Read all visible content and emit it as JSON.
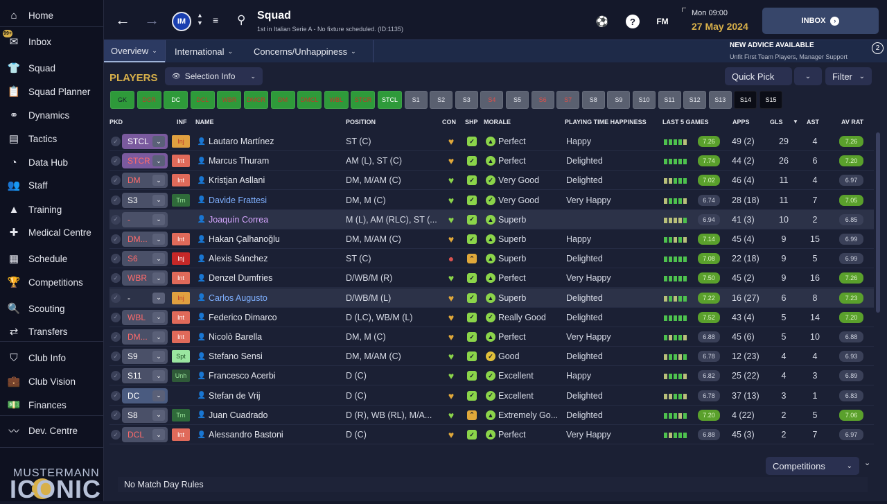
{
  "sidebar": {
    "inbox_badge": "99+",
    "items": [
      {
        "label": "Home",
        "icon": "home-icon",
        "glyph": "⌂"
      },
      {
        "label": "Inbox",
        "icon": "inbox-icon",
        "glyph": "✉"
      },
      {
        "label": "Squad",
        "icon": "squad-shirt-icon",
        "glyph": "👕",
        "active": true
      },
      {
        "label": "Squad Planner",
        "icon": "clipboard-icon",
        "glyph": "📋"
      },
      {
        "label": "Dynamics",
        "icon": "dynamics-icon",
        "glyph": "⚭"
      },
      {
        "label": "Tactics",
        "icon": "tactics-board-icon",
        "glyph": "▤"
      },
      {
        "label": "Data Hub",
        "icon": "data-hub-icon",
        "glyph": "◔"
      },
      {
        "label": "Staff",
        "icon": "staff-icon",
        "glyph": "👥"
      },
      {
        "label": "Training",
        "icon": "training-cone-icon",
        "glyph": "▲"
      },
      {
        "label": "Medical Centre",
        "icon": "medical-kit-icon",
        "glyph": "✚"
      },
      {
        "label": "Schedule",
        "icon": "calendar-icon",
        "glyph": "▦"
      },
      {
        "label": "Competitions",
        "icon": "trophy-icon",
        "glyph": "🏆"
      },
      {
        "label": "Scouting",
        "icon": "magnifier-icon",
        "glyph": "🔍"
      },
      {
        "label": "Transfers",
        "icon": "transfers-arrows-icon",
        "glyph": "⇄"
      },
      {
        "label": "Club Info",
        "icon": "shield-icon",
        "glyph": "⛉"
      },
      {
        "label": "Club Vision",
        "icon": "briefcase-icon",
        "glyph": "💼"
      },
      {
        "label": "Finances",
        "icon": "money-icon",
        "glyph": "💵"
      },
      {
        "label": "Dev. Centre",
        "icon": "dev-centre-icon",
        "glyph": "〰"
      }
    ],
    "brand_top": "MUSTERMANN",
    "brand_bottom": "ICONIC"
  },
  "topbar": {
    "title": "Squad",
    "subtitle": "1st in Italian Serie A - No fixture scheduled. (ID:1135)",
    "club_crest": "IM",
    "time": "Mon 09:00",
    "date": "27 May 2024",
    "fm_label": "FM",
    "inbox_label": "INBOX"
  },
  "tabs": [
    {
      "label": "Overview",
      "active": true
    },
    {
      "label": "International"
    },
    {
      "label": "Concerns/Unhappiness"
    }
  ],
  "advice": {
    "title": "NEW ADVICE AVAILABLE",
    "text": "Unfit First Team Players, Manager Support",
    "count": "2"
  },
  "toolbar": {
    "players_label": "PLAYERS",
    "selection_info": "Selection Info",
    "quick_pick": "Quick Pick",
    "filter": "Filter"
  },
  "formation_slots": [
    {
      "label": "GK",
      "state": "green"
    },
    {
      "label": "DCR",
      "state": "green-red"
    },
    {
      "label": "DC",
      "state": "green-white"
    },
    {
      "label": "DCL",
      "state": "green-red"
    },
    {
      "label": "WBR",
      "state": "green-red"
    },
    {
      "label": "DMCR",
      "state": "green-red"
    },
    {
      "label": "DM",
      "state": "green-red"
    },
    {
      "label": "DMCL",
      "state": "green-red"
    },
    {
      "label": "WBL",
      "state": "green-red"
    },
    {
      "label": "STCR",
      "state": "green-red"
    },
    {
      "label": "STCL",
      "state": "green-white"
    },
    {
      "label": "S1",
      "state": "grey"
    },
    {
      "label": "S2",
      "state": "grey"
    },
    {
      "label": "S3",
      "state": "grey"
    },
    {
      "label": "S4",
      "state": "grey-red"
    },
    {
      "label": "S5",
      "state": "grey"
    },
    {
      "label": "S6",
      "state": "grey-red"
    },
    {
      "label": "S7",
      "state": "grey-red"
    },
    {
      "label": "S8",
      "state": "grey"
    },
    {
      "label": "S9",
      "state": "grey"
    },
    {
      "label": "S10",
      "state": "grey"
    },
    {
      "label": "S11",
      "state": "grey"
    },
    {
      "label": "S12",
      "state": "grey"
    },
    {
      "label": "S13",
      "state": "grey"
    },
    {
      "label": "S14",
      "state": "black"
    },
    {
      "label": "S15",
      "state": "black"
    }
  ],
  "columns": {
    "pkd": "PKD",
    "inf": "INF",
    "name": "NAME",
    "position": "POSITION",
    "con": "CON",
    "shp": "SHP",
    "morale": "MORALE",
    "pth": "PLAYING TIME HAPPINESS",
    "last5": "LAST 5 GAMES",
    "apps": "APPS",
    "gls": "GLS",
    "ast": "AST",
    "avrat": "AV RAT"
  },
  "players": [
    {
      "pkd": "STCL",
      "pkd_color": "#ffffff",
      "pkd_bg": "#7a5a9e",
      "inf": "Inj",
      "inf_type": "inj-amber",
      "name": "Lautaro Martínez",
      "name_color": "#e6e8ef",
      "position": "ST (C)",
      "con": "amber",
      "shp": "green",
      "morale_icon": "up",
      "morale": "Perfect",
      "pth": "Happy",
      "last5": [
        1,
        1,
        1,
        1,
        0
      ],
      "last5_rating": "7.26",
      "last5_hi": true,
      "apps": "49 (2)",
      "gls": "29",
      "ast": "4",
      "avrat": "7.26",
      "avrat_hi": true
    },
    {
      "pkd": "STCR",
      "pkd_color": "#ff6b6b",
      "pkd_bg": "#7a5a9e",
      "inf": "Int",
      "inf_type": "int",
      "name": "Marcus Thuram",
      "name_color": "#e6e8ef",
      "position": "AM (L), ST (C)",
      "con": "amber",
      "shp": "green",
      "morale_icon": "up",
      "morale": "Perfect",
      "pth": "Delighted",
      "last5": [
        1,
        1,
        1,
        1,
        1
      ],
      "last5_rating": "7.74",
      "last5_hi": true,
      "apps": "44 (2)",
      "gls": "26",
      "ast": "6",
      "avrat": "7.20",
      "avrat_hi": true
    },
    {
      "pkd": "DM",
      "pkd_color": "#ff6b6b",
      "pkd_bg": "#4a5068",
      "inf": "Int",
      "inf_type": "int",
      "name": "Kristjan Asllani",
      "name_color": "#e6e8ef",
      "position": "DM, M/AM (C)",
      "con": "green",
      "shp": "green",
      "morale_icon": "check",
      "morale": "Very Good",
      "pth": "Delighted",
      "last5": [
        0,
        0,
        1,
        1,
        1
      ],
      "last5_rating": "7.02",
      "last5_hi": true,
      "apps": "46 (4)",
      "gls": "11",
      "ast": "4",
      "avrat": "6.97",
      "avrat_hi": false
    },
    {
      "pkd": "S3",
      "pkd_color": "#ffffff",
      "pkd_bg": "#4a5068",
      "inf": "Trn",
      "inf_type": "trn",
      "name": "Davide Frattesi",
      "name_color": "#7fb0ff",
      "position": "DM, M (C)",
      "con": "green",
      "shp": "green",
      "morale_icon": "check",
      "morale": "Very Good",
      "pth": "Very Happy",
      "last5": [
        0,
        1,
        1,
        1,
        0
      ],
      "last5_rating": "6.74",
      "last5_hi": false,
      "apps": "28 (18)",
      "gls": "11",
      "ast": "7",
      "avrat": "7.05",
      "avrat_hi": true
    },
    {
      "pkd": "-",
      "pkd_color": "#ff6b6b",
      "pkd_bg": "#4a5068",
      "inf": "",
      "inf_type": "none",
      "name": "Joaquín Correa",
      "name_color": "#d6a6ff",
      "position": "M (L), AM (RLC), ST (...",
      "con": "green",
      "shp": "green",
      "morale_icon": "up",
      "morale": "Superb",
      "pth": "",
      "last5": [
        0,
        0,
        0,
        0,
        1
      ],
      "last5_rating": "6.94",
      "last5_hi": false,
      "apps": "41 (3)",
      "gls": "10",
      "ast": "2",
      "avrat": "6.85",
      "avrat_hi": false,
      "highlight": true
    },
    {
      "pkd": "DM...",
      "pkd_color": "#ff6b6b",
      "pkd_bg": "#4a5068",
      "inf": "Int",
      "inf_type": "int",
      "name": "Hakan Çalhanoğlu",
      "name_color": "#e6e8ef",
      "position": "DM, M/AM (C)",
      "con": "amber",
      "shp": "green",
      "morale_icon": "up",
      "morale": "Superb",
      "pth": "Happy",
      "last5": [
        1,
        1,
        0,
        1,
        0
      ],
      "last5_rating": "7.14",
      "last5_hi": true,
      "apps": "45 (4)",
      "gls": "9",
      "ast": "15",
      "avrat": "6.99",
      "avrat_hi": false
    },
    {
      "pkd": "S6",
      "pkd_color": "#ff6b6b",
      "pkd_bg": "#4a5068",
      "inf": "Inj",
      "inf_type": "inj-red",
      "name": "Alexis Sánchez",
      "name_color": "#e6e8ef",
      "position": "ST (C)",
      "con": "red",
      "shp": "amber",
      "morale_icon": "up",
      "morale": "Superb",
      "pth": "Delighted",
      "last5": [
        1,
        1,
        1,
        1,
        1
      ],
      "last5_rating": "7.08",
      "last5_hi": true,
      "apps": "22 (18)",
      "gls": "9",
      "ast": "5",
      "avrat": "6.99",
      "avrat_hi": false
    },
    {
      "pkd": "WBR",
      "pkd_color": "#ff6b6b",
      "pkd_bg": "#4a5068",
      "inf": "Int",
      "inf_type": "int",
      "name": "Denzel Dumfries",
      "name_color": "#e6e8ef",
      "position": "D/WB/M (R)",
      "con": "green",
      "shp": "green",
      "morale_icon": "up",
      "morale": "Perfect",
      "pth": "Very Happy",
      "last5": [
        1,
        1,
        1,
        1,
        1
      ],
      "last5_rating": "7.50",
      "last5_hi": true,
      "apps": "45 (2)",
      "gls": "9",
      "ast": "16",
      "avrat": "7.26",
      "avrat_hi": true
    },
    {
      "pkd": "-",
      "pkd_color": "#ffffff",
      "pkd_bg": "#2c3248",
      "inf": "Inj",
      "inf_type": "inj-amber",
      "name": "Carlos Augusto",
      "name_color": "#7fb0ff",
      "position": "D/WB/M (L)",
      "con": "amber",
      "shp": "green",
      "morale_icon": "up",
      "morale": "Superb",
      "pth": "Delighted",
      "last5": [
        0,
        1,
        0,
        1,
        1
      ],
      "last5_rating": "7.22",
      "last5_hi": true,
      "apps": "16 (27)",
      "gls": "6",
      "ast": "8",
      "avrat": "7.23",
      "avrat_hi": true,
      "highlight": true
    },
    {
      "pkd": "WBL",
      "pkd_color": "#ff6b6b",
      "pkd_bg": "#4a5068",
      "inf": "Int",
      "inf_type": "int",
      "name": "Federico Dimarco",
      "name_color": "#e6e8ef",
      "position": "D (LC), WB/M (L)",
      "con": "amber",
      "shp": "green",
      "morale_icon": "check",
      "morale": "Really Good",
      "pth": "Delighted",
      "last5": [
        1,
        1,
        1,
        1,
        1
      ],
      "last5_rating": "7.52",
      "last5_hi": true,
      "apps": "43 (4)",
      "gls": "5",
      "ast": "14",
      "avrat": "7.20",
      "avrat_hi": true
    },
    {
      "pkd": "DM...",
      "pkd_color": "#ff6b6b",
      "pkd_bg": "#4a5068",
      "inf": "Int",
      "inf_type": "int",
      "name": "Nicolò Barella",
      "name_color": "#e6e8ef",
      "position": "DM, M (C)",
      "con": "amber",
      "shp": "green",
      "morale_icon": "up",
      "morale": "Perfect",
      "pth": "Very Happy",
      "last5": [
        1,
        0,
        1,
        1,
        0
      ],
      "last5_rating": "6.88",
      "last5_hi": false,
      "apps": "45 (6)",
      "gls": "5",
      "ast": "10",
      "avrat": "6.88",
      "avrat_hi": false
    },
    {
      "pkd": "S9",
      "pkd_color": "#ffffff",
      "pkd_bg": "#4a5068",
      "inf": "Spt",
      "inf_type": "spt",
      "name": "Stefano Sensi",
      "name_color": "#e6e8ef",
      "position": "DM, M/AM (C)",
      "con": "green",
      "shp": "green",
      "morale_icon": "check-amber",
      "morale": "Good",
      "pth": "Delighted",
      "last5": [
        0,
        1,
        1,
        0,
        1
      ],
      "last5_rating": "6.78",
      "last5_hi": false,
      "apps": "12 (23)",
      "gls": "4",
      "ast": "4",
      "avrat": "6.93",
      "avrat_hi": false
    },
    {
      "pkd": "S11",
      "pkd_color": "#ffffff",
      "pkd_bg": "#4a5068",
      "inf": "Unh",
      "inf_type": "unh",
      "name": "Francesco Acerbi",
      "name_color": "#e6e8ef",
      "position": "D (C)",
      "con": "green",
      "shp": "green",
      "morale_icon": "check",
      "morale": "Excellent",
      "pth": "Happy",
      "last5": [
        0,
        1,
        1,
        1,
        0
      ],
      "last5_rating": "6.82",
      "last5_hi": false,
      "apps": "25 (22)",
      "gls": "4",
      "ast": "3",
      "avrat": "6.89",
      "avrat_hi": false
    },
    {
      "pkd": "DC",
      "pkd_color": "#ffffff",
      "pkd_bg": "#4a5b80",
      "inf": "",
      "inf_type": "none",
      "name": "Stefan de Vrij",
      "name_color": "#e6e8ef",
      "position": "D (C)",
      "con": "amber",
      "shp": "green",
      "morale_icon": "check",
      "morale": "Excellent",
      "pth": "Delighted",
      "last5": [
        0,
        0,
        1,
        1,
        0
      ],
      "last5_rating": "6.78",
      "last5_hi": false,
      "apps": "37 (13)",
      "gls": "3",
      "ast": "1",
      "avrat": "6.83",
      "avrat_hi": false
    },
    {
      "pkd": "S8",
      "pkd_color": "#ffffff",
      "pkd_bg": "#4a5068",
      "inf": "Trn",
      "inf_type": "trn",
      "name": "Juan Cuadrado",
      "name_color": "#e6e8ef",
      "position": "D (R), WB (RL), M/A...",
      "con": "green",
      "shp": "amber",
      "morale_icon": "up",
      "morale": "Extremely Go...",
      "pth": "Delighted",
      "last5": [
        1,
        1,
        1,
        0,
        1
      ],
      "last5_rating": "7.20",
      "last5_hi": true,
      "apps": "4 (22)",
      "gls": "2",
      "ast": "5",
      "avrat": "7.06",
      "avrat_hi": true
    },
    {
      "pkd": "DCL",
      "pkd_color": "#ff6b6b",
      "pkd_bg": "#4a5068",
      "inf": "Int",
      "inf_type": "int",
      "name": "Alessandro Bastoni",
      "name_color": "#e6e8ef",
      "position": "D (C)",
      "con": "amber",
      "shp": "green",
      "morale_icon": "up",
      "morale": "Perfect",
      "pth": "Very Happy",
      "last5": [
        1,
        0,
        1,
        1,
        1
      ],
      "last5_rating": "6.88",
      "last5_hi": false,
      "apps": "45 (3)",
      "gls": "2",
      "ast": "7",
      "avrat": "6.97",
      "avrat_hi": false
    }
  ],
  "footer": {
    "competitions": "Competitions",
    "match_day_rules": "No Match Day Rules"
  },
  "colors": {
    "accent_gold": "#d8b04a",
    "green_rating": "#8bd44a",
    "int_red": "#d9534f"
  }
}
